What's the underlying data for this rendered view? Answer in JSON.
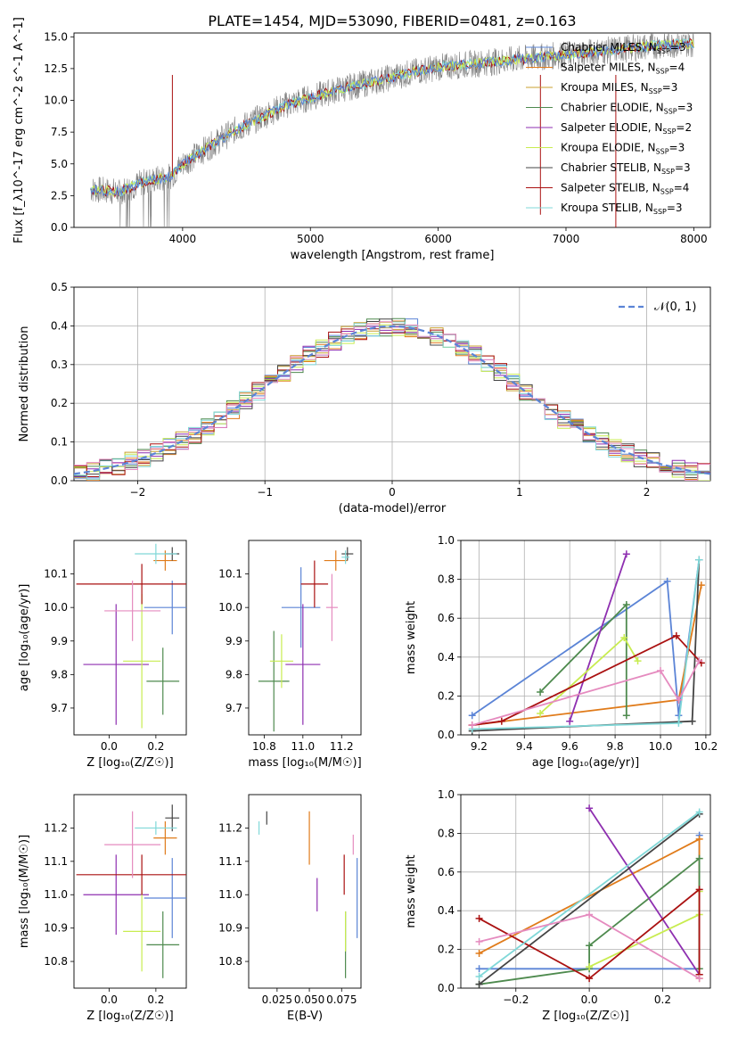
{
  "title": "PLATE=1454, MJD=53090, FIBERID=0481, z=0.163",
  "colors": {
    "Chabrier MILES": "#5b84d6",
    "Salpeter MILES": "#e07b1a",
    "Kroupa MILES": "#c8a030",
    "Chabrier ELODIE": "#4e8a4e",
    "Salpeter ELODIE": "#8e2fb0",
    "Kroupa ELODIE": "#c8ec50",
    "Chabrier STELIB": "#444444",
    "Salpeter STELIB": "#aa1111",
    "Kroupa STELIB": "#80d8d8",
    "data": "#808080",
    "normal": "#5b84d6",
    "pink": "#e58bbf"
  },
  "chart_data": [
    {
      "id": "spectrum",
      "type": "line",
      "xlabel": "wavelength [Angstrom, rest frame]",
      "ylabel": "Flux [f_λ10^-17 erg cm^-2 s^-1 A^-1]",
      "xlim": [
        3150,
        8130
      ],
      "ylim": [
        0,
        15.3
      ],
      "xticks": [
        4000,
        5000,
        6000,
        7000,
        8000
      ],
      "yticks": [
        "0.0",
        "2.5",
        "5.0",
        "7.5",
        "10.0",
        "12.5",
        "15.0"
      ],
      "continuum": {
        "x": [
          3280,
          3500,
          3700,
          3900,
          4000,
          4200,
          4400,
          4600,
          4800,
          5000,
          5200,
          5500,
          5800,
          6000,
          6300,
          6600,
          7000,
          7400,
          7700,
          8000
        ],
        "y": [
          3.0,
          2.8,
          3.6,
          4.0,
          5.0,
          6.3,
          7.6,
          8.6,
          9.6,
          10.2,
          10.8,
          11.5,
          12.2,
          12.6,
          12.9,
          13.2,
          13.6,
          14.0,
          14.3,
          14.5
        ]
      },
      "legend": [
        {
          "label": "Chabrier MILES, N",
          "sub": "SSP",
          "val": "=3"
        },
        {
          "label": "Salpeter MILES, N",
          "sub": "SSP",
          "val": "=4"
        },
        {
          "label": "Kroupa MILES, N",
          "sub": "SSP",
          "val": "=3"
        },
        {
          "label": "Chabrier ELODIE, N",
          "sub": "SSP",
          "val": "=3"
        },
        {
          "label": "Salpeter ELODIE, N",
          "sub": "SSP",
          "val": "=2"
        },
        {
          "label": "Kroupa ELODIE, N",
          "sub": "SSP",
          "val": "=3"
        },
        {
          "label": "Chabrier STELIB, N",
          "sub": "SSP",
          "val": "=3"
        },
        {
          "label": "Salpeter STELIB, N",
          "sub": "SSP",
          "val": "=4"
        },
        {
          "label": "Kroupa STELIB, N",
          "sub": "SSP",
          "val": "=3"
        }
      ],
      "legend_placement": "upper-right"
    },
    {
      "id": "residuals",
      "type": "bar",
      "xlabel": "(data-model)/error",
      "ylabel": "Normed distribution",
      "xlim": [
        -2.5,
        2.5
      ],
      "ylim": [
        0,
        0.5
      ],
      "xticks": [
        "−2",
        "−1",
        "0",
        "1",
        "2"
      ],
      "yticks": [
        "0.0",
        "0.1",
        "0.2",
        "0.3",
        "0.4",
        "0.5"
      ],
      "legend": "𝒩(0, 1)",
      "legend_placement": "upper-right",
      "grid": true
    },
    {
      "id": "age_vs_Z",
      "type": "scatter",
      "xlabel": "Z [log₁₀(Z/Z☉)]",
      "ylabel": "age  [log₁₀(age/yr)]",
      "xlim": [
        -0.15,
        0.33
      ],
      "ylim": [
        9.62,
        10.2
      ],
      "xticks": [
        "0.0",
        "0.2"
      ],
      "yticks": [
        "9.7",
        "9.8",
        "9.9",
        "10.0",
        "10.1"
      ],
      "points": [
        {
          "model": "Chabrier MILES",
          "x": 0.27,
          "y": 10.0,
          "dx": 0.12,
          "dy": 0.08
        },
        {
          "model": "Salpeter MILES",
          "x": 0.24,
          "y": 10.14,
          "dx": 0.05,
          "dy": 0.03
        },
        {
          "model": "Chabrier ELODIE",
          "x": 0.23,
          "y": 9.78,
          "dx": 0.07,
          "dy": 0.1
        },
        {
          "model": "Salpeter ELODIE",
          "x": 0.03,
          "y": 9.83,
          "dx": 0.14,
          "dy": 0.18
        },
        {
          "model": "Kroupa ELODIE",
          "x": 0.14,
          "y": 9.84,
          "dx": 0.08,
          "dy": 0.2
        },
        {
          "model": "Chabrier STELIB",
          "x": 0.27,
          "y": 10.16,
          "dx": 0.03,
          "dy": 0.02
        },
        {
          "model": "Salpeter STELIB",
          "x": 0.14,
          "y": 10.07,
          "dx": 0.28,
          "dy": 0.06
        },
        {
          "model": "Kroupa STELIB",
          "x": 0.2,
          "y": 10.16,
          "dx": 0.09,
          "dy": 0.03
        },
        {
          "model": "pink",
          "x": 0.1,
          "y": 9.99,
          "dx": 0.12,
          "dy": 0.09
        }
      ]
    },
    {
      "id": "age_vs_mass",
      "type": "scatter",
      "xlabel": "mass [log₁₀(M/M☉)]",
      "ylabel": "",
      "xlim": [
        10.72,
        11.3
      ],
      "ylim": [
        9.62,
        10.2
      ],
      "xticks": [
        "10.8",
        "11.0",
        "11.2"
      ],
      "yticks": [
        "9.7",
        "9.8",
        "9.9",
        "10.0",
        "10.1"
      ],
      "points": [
        {
          "model": "Chabrier MILES",
          "x": 10.99,
          "y": 10.0,
          "dx": 0.1,
          "dy": 0.12
        },
        {
          "model": "Salpeter MILES",
          "x": 11.17,
          "y": 10.14,
          "dx": 0.06,
          "dy": 0.03
        },
        {
          "model": "Chabrier ELODIE",
          "x": 10.85,
          "y": 9.78,
          "dx": 0.08,
          "dy": 0.15
        },
        {
          "model": "Salpeter ELODIE",
          "x": 11.0,
          "y": 9.83,
          "dx": 0.09,
          "dy": 0.18
        },
        {
          "model": "Kroupa ELODIE",
          "x": 10.89,
          "y": 9.84,
          "dx": 0.06,
          "dy": 0.08
        },
        {
          "model": "Chabrier STELIB",
          "x": 11.23,
          "y": 10.16,
          "dx": 0.03,
          "dy": 0.02
        },
        {
          "model": "Salpeter STELIB",
          "x": 11.06,
          "y": 10.07,
          "dx": 0.07,
          "dy": 0.07
        },
        {
          "model": "Kroupa STELIB",
          "x": 11.22,
          "y": 10.15,
          "dx": 0.02,
          "dy": 0.02
        },
        {
          "model": "pink",
          "x": 11.15,
          "y": 10.0,
          "dx": 0.03,
          "dy": 0.1
        }
      ]
    },
    {
      "id": "weight_vs_age",
      "type": "line",
      "xlabel": "age  [log₁₀(age/yr)]",
      "ylabel": "mass weight",
      "xlim": [
        9.12,
        10.22
      ],
      "ylim": [
        0,
        1.0
      ],
      "xticks": [
        "9.2",
        "9.4",
        "9.6",
        "9.8",
        "10.0",
        "10.2"
      ],
      "yticks": [
        "0.0",
        "0.2",
        "0.4",
        "0.6",
        "0.8",
        "1.0"
      ],
      "grid": true,
      "series": [
        {
          "model": "Chabrier MILES",
          "x": [
            9.17,
            10.03,
            10.08,
            10.17
          ],
          "y": [
            0.1,
            0.79,
            0.1,
            0.9
          ]
        },
        {
          "model": "Salpeter MILES",
          "x": [
            9.17,
            10.08,
            10.18
          ],
          "y": [
            0.05,
            0.18,
            0.77
          ]
        },
        {
          "model": "Chabrier ELODIE",
          "x": [
            9.47,
            9.85,
            9.85
          ],
          "y": [
            0.22,
            0.67,
            0.1
          ]
        },
        {
          "model": "Salpeter ELODIE",
          "x": [
            9.6,
            9.85
          ],
          "y": [
            0.07,
            0.93
          ]
        },
        {
          "model": "Kroupa ELODIE",
          "x": [
            9.47,
            9.84,
            9.9
          ],
          "y": [
            0.11,
            0.5,
            0.38
          ]
        },
        {
          "model": "Chabrier STELIB",
          "x": [
            9.17,
            10.14,
            10.17
          ],
          "y": [
            0.02,
            0.07,
            0.9
          ]
        },
        {
          "model": "Salpeter STELIB",
          "x": [
            9.17,
            9.3,
            10.07,
            10.18
          ],
          "y": [
            0.05,
            0.07,
            0.51,
            0.37
          ]
        },
        {
          "model": "Kroupa STELIB",
          "x": [
            9.17,
            10.08,
            10.17
          ],
          "y": [
            0.03,
            0.06,
            0.9
          ]
        },
        {
          "model": "pink",
          "x": [
            9.17,
            10.0,
            10.08,
            10.17
          ],
          "y": [
            0.05,
            0.33,
            0.18,
            0.38
          ]
        }
      ]
    },
    {
      "id": "mass_vs_Z",
      "type": "scatter",
      "xlabel": "Z [log₁₀(Z/Z☉)]",
      "ylabel": "mass [log₁₀(M/M☉)]",
      "xlim": [
        -0.15,
        0.33
      ],
      "ylim": [
        10.72,
        11.3
      ],
      "xticks": [
        "0.0",
        "0.2"
      ],
      "yticks": [
        "10.8",
        "10.9",
        "11.0",
        "11.1",
        "11.2"
      ],
      "points": [
        {
          "model": "Chabrier MILES",
          "x": 0.27,
          "y": 10.99,
          "dx": 0.12,
          "dy": 0.12
        },
        {
          "model": "Salpeter MILES",
          "x": 0.24,
          "y": 11.17,
          "dx": 0.05,
          "dy": 0.05
        },
        {
          "model": "Chabrier ELODIE",
          "x": 0.23,
          "y": 10.85,
          "dx": 0.07,
          "dy": 0.1
        },
        {
          "model": "Salpeter ELODIE",
          "x": 0.03,
          "y": 11.0,
          "dx": 0.14,
          "dy": 0.12
        },
        {
          "model": "Kroupa ELODIE",
          "x": 0.14,
          "y": 10.89,
          "dx": 0.08,
          "dy": 0.12
        },
        {
          "model": "Chabrier STELIB",
          "x": 0.27,
          "y": 11.23,
          "dx": 0.03,
          "dy": 0.04
        },
        {
          "model": "Salpeter STELIB",
          "x": 0.14,
          "y": 11.06,
          "dx": 0.28,
          "dy": 0.06
        },
        {
          "model": "Kroupa STELIB",
          "x": 0.2,
          "y": 11.2,
          "dx": 0.09,
          "dy": 0.02
        },
        {
          "model": "pink",
          "x": 0.1,
          "y": 11.15,
          "dx": 0.12,
          "dy": 0.1
        }
      ]
    },
    {
      "id": "mass_vs_EBV",
      "type": "scatter",
      "xlabel": "E(B-V)",
      "ylabel": "",
      "xlim": [
        0.003,
        0.09
      ],
      "ylim": [
        10.72,
        11.3
      ],
      "xticks": [
        "0.025",
        "0.050",
        "0.075"
      ],
      "yticks": [
        "10.8",
        "10.9",
        "11.0",
        "11.1",
        "11.2"
      ],
      "points": [
        {
          "model": "Chabrier MILES",
          "x": 0.087,
          "y": 10.99,
          "dx": 0,
          "dy": 0.12
        },
        {
          "model": "Salpeter MILES",
          "x": 0.05,
          "y": 11.17,
          "dx": 0,
          "dy": 0.08
        },
        {
          "model": "Chabrier ELODIE",
          "x": 0.078,
          "y": 10.85,
          "dx": 0,
          "dy": 0.1
        },
        {
          "model": "Salpeter ELODIE",
          "x": 0.056,
          "y": 11.0,
          "dx": 0,
          "dy": 0.05
        },
        {
          "model": "Kroupa ELODIE",
          "x": 0.078,
          "y": 10.89,
          "dx": 0,
          "dy": 0.06
        },
        {
          "model": "Chabrier STELIB",
          "x": 0.017,
          "y": 11.23,
          "dx": 0,
          "dy": 0.02
        },
        {
          "model": "Salpeter STELIB",
          "x": 0.077,
          "y": 11.06,
          "dx": 0,
          "dy": 0.06
        },
        {
          "model": "Kroupa STELIB",
          "x": 0.011,
          "y": 11.2,
          "dx": 0,
          "dy": 0.02
        },
        {
          "model": "pink",
          "x": 0.084,
          "y": 11.15,
          "dx": 0,
          "dy": 0.03
        }
      ]
    },
    {
      "id": "weight_vs_Z",
      "type": "line",
      "xlabel": "Z [log₁₀(Z/Z☉)]",
      "ylabel": "mass weight",
      "xlim": [
        -0.35,
        0.33
      ],
      "ylim": [
        0,
        1.0
      ],
      "xticks": [
        "−0.2",
        "0.0",
        "0.2"
      ],
      "yticks": [
        "0.0",
        "0.2",
        "0.4",
        "0.6",
        "0.8",
        "1.0"
      ],
      "grid": true,
      "series": [
        {
          "model": "Chabrier MILES",
          "x": [
            -0.3,
            0.3,
            0.3
          ],
          "y": [
            0.1,
            0.1,
            0.79
          ]
        },
        {
          "model": "Salpeter MILES",
          "x": [
            -0.3,
            0.3,
            0.3
          ],
          "y": [
            0.18,
            0.77,
            0.05
          ]
        },
        {
          "model": "Chabrier ELODIE",
          "x": [
            -0.3,
            0.0,
            0.0,
            0.3,
            0.3
          ],
          "y": [
            0.02,
            0.1,
            0.22,
            0.67,
            0.1
          ]
        },
        {
          "model": "Salpeter ELODIE",
          "x": [
            0.0,
            0.3
          ],
          "y": [
            0.93,
            0.07
          ]
        },
        {
          "model": "Kroupa ELODIE",
          "x": [
            0.0,
            0.3,
            0.3
          ],
          "y": [
            0.11,
            0.38,
            0.5
          ]
        },
        {
          "model": "Chabrier STELIB",
          "x": [
            -0.3,
            0.3
          ],
          "y": [
            0.02,
            0.9
          ]
        },
        {
          "model": "Salpeter STELIB",
          "x": [
            -0.3,
            0.0,
            0.3,
            0.3
          ],
          "y": [
            0.36,
            0.05,
            0.51,
            0.07
          ]
        },
        {
          "model": "Kroupa STELIB",
          "x": [
            -0.3,
            0.3
          ],
          "y": [
            0.06,
            0.91
          ]
        },
        {
          "model": "pink",
          "x": [
            -0.3,
            0.0,
            0.3
          ],
          "y": [
            0.24,
            0.38,
            0.05
          ]
        }
      ]
    }
  ]
}
